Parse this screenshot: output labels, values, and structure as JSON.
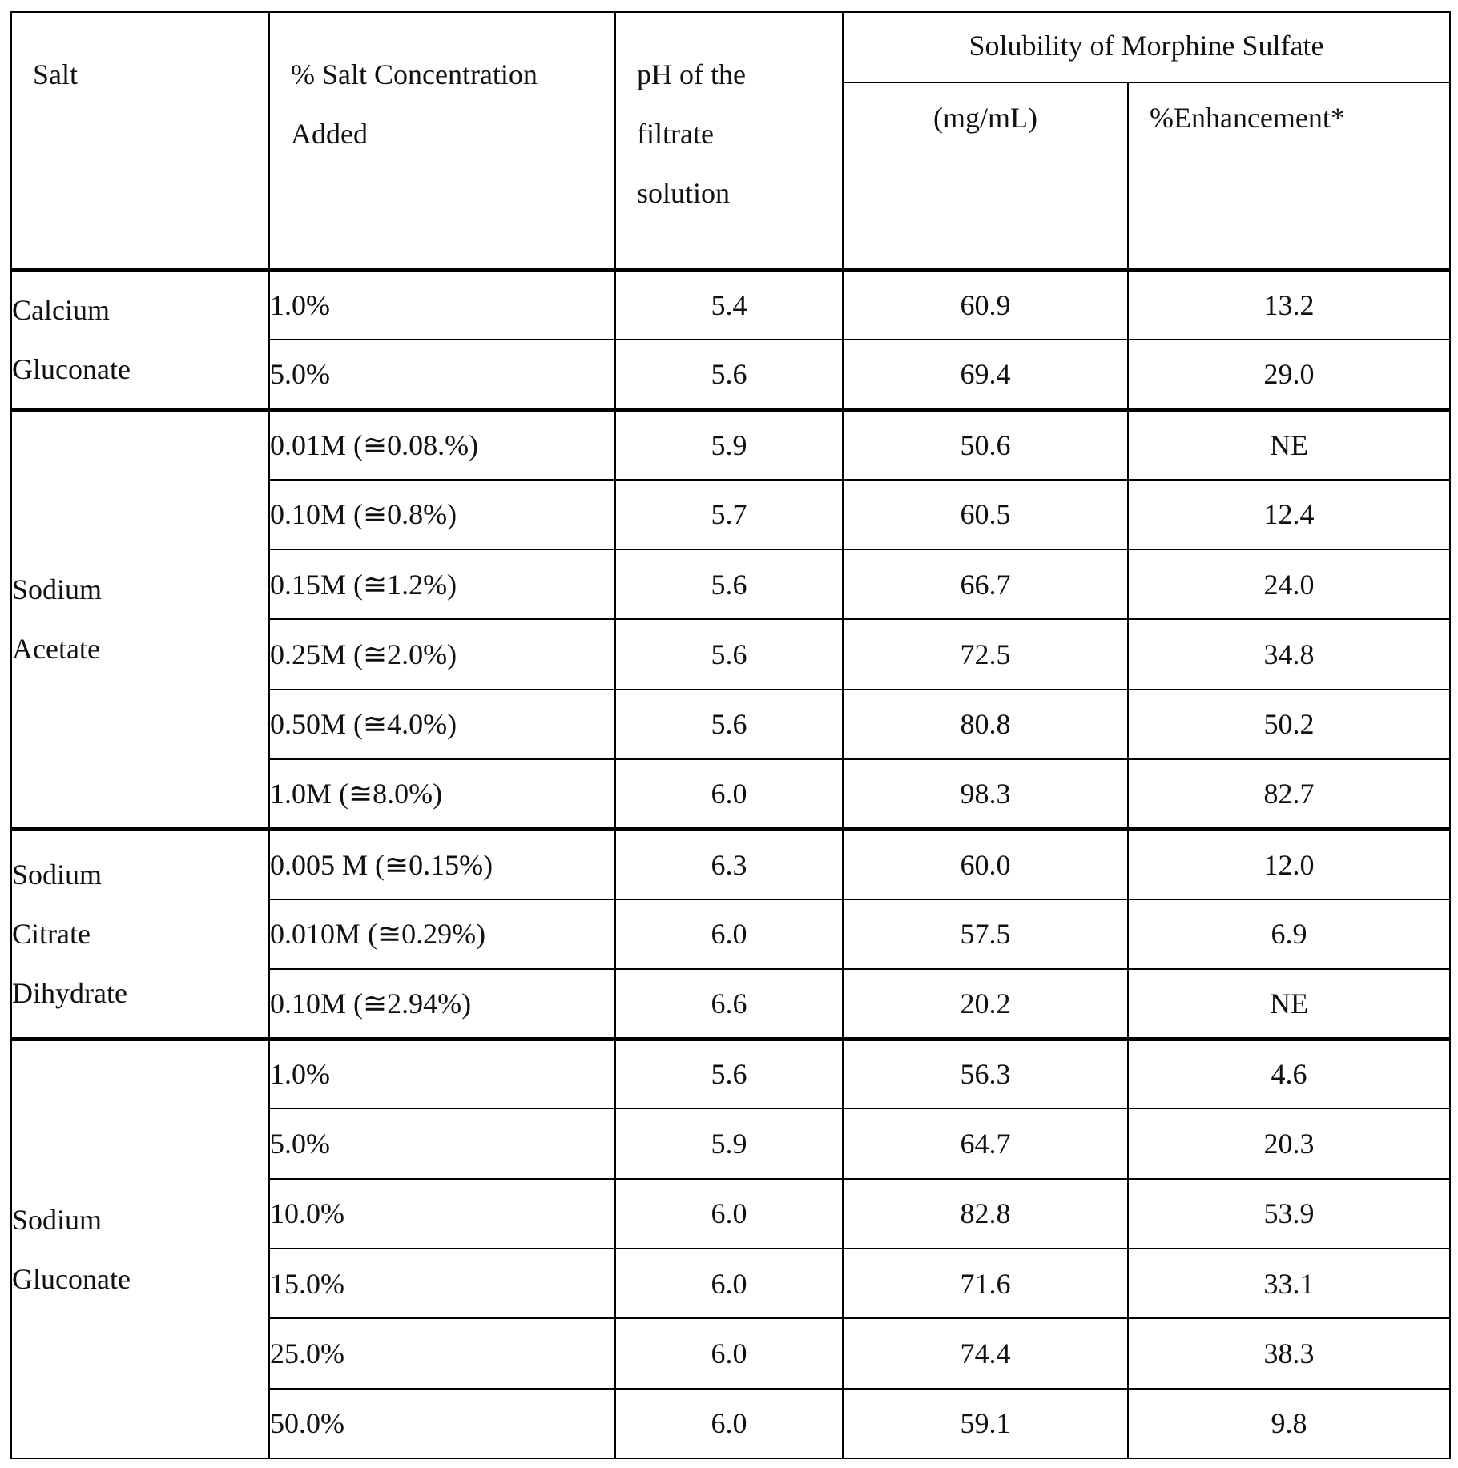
{
  "headers": {
    "salt": "Salt",
    "concentration": [
      "% Salt Concentration",
      "Added"
    ],
    "ph": [
      "pH of the",
      "filtrate",
      "solution"
    ],
    "solubility_group": "Solubility of Morphine Sulfate",
    "mg_per_ml": "(mg/mL)",
    "enhancement": "%Enhancement*"
  },
  "groups": [
    {
      "salt_lines": [
        "Calcium",
        "Gluconate"
      ],
      "rows": [
        {
          "concentration": "1.0%",
          "ph": "5.4",
          "solubility": "60.9",
          "enhancement": "13.2"
        },
        {
          "concentration": "5.0%",
          "ph": "5.6",
          "solubility": "69.4",
          "enhancement": "29.0"
        }
      ]
    },
    {
      "salt_lines": [
        "Sodium",
        "Acetate"
      ],
      "rows": [
        {
          "concentration": "0.01M (≅0.08.%)",
          "ph": "5.9",
          "solubility": "50.6",
          "enhancement": "NE"
        },
        {
          "concentration": "0.10M (≅0.8%)",
          "ph": "5.7",
          "solubility": "60.5",
          "enhancement": "12.4"
        },
        {
          "concentration": "0.15M (≅1.2%)",
          "ph": "5.6",
          "solubility": "66.7",
          "enhancement": "24.0"
        },
        {
          "concentration": "0.25M (≅2.0%)",
          "ph": "5.6",
          "solubility": "72.5",
          "enhancement": "34.8"
        },
        {
          "concentration": "0.50M (≅4.0%)",
          "ph": "5.6",
          "solubility": "80.8",
          "enhancement": "50.2"
        },
        {
          "concentration": "1.0M (≅8.0%)",
          "ph": "6.0",
          "solubility": "98.3",
          "enhancement": "82.7"
        }
      ]
    },
    {
      "salt_lines": [
        "Sodium",
        "Citrate",
        "Dihydrate"
      ],
      "rows": [
        {
          "concentration": "0.005 M (≅0.15%)",
          "ph": "6.3",
          "solubility": "60.0",
          "enhancement": "12.0"
        },
        {
          "concentration": "0.010M (≅0.29%)",
          "ph": "6.0",
          "solubility": "57.5",
          "enhancement": "6.9"
        },
        {
          "concentration": "0.10M (≅2.94%)",
          "ph": "6.6",
          "solubility": "20.2",
          "enhancement": "NE"
        }
      ]
    },
    {
      "salt_lines": [
        "Sodium",
        "Gluconate"
      ],
      "rows": [
        {
          "concentration": "1.0%",
          "ph": "5.6",
          "solubility": "56.3",
          "enhancement": "4.6"
        },
        {
          "concentration": "5.0%",
          "ph": "5.9",
          "solubility": "64.7",
          "enhancement": "20.3"
        },
        {
          "concentration": "10.0%",
          "ph": "6.0",
          "solubility": "82.8",
          "enhancement": "53.9"
        },
        {
          "concentration": "15.0%",
          "ph": "6.0",
          "solubility": "71.6",
          "enhancement": "33.1"
        },
        {
          "concentration": "25.0%",
          "ph": "6.0",
          "solubility": "74.4",
          "enhancement": "38.3"
        },
        {
          "concentration": "50.0%",
          "ph": "6.0",
          "solubility": "59.1",
          "enhancement": "9.8"
        }
      ]
    }
  ]
}
